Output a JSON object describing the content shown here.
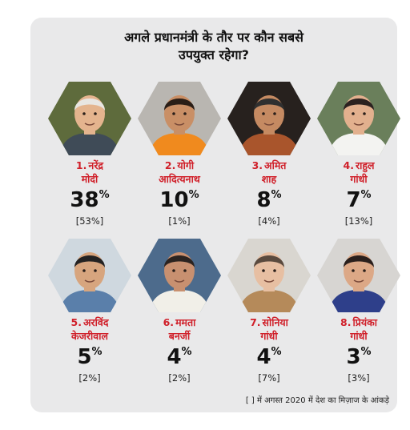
{
  "title_line1": "अगले प्रधानमंत्री के तौर पर कौन सबसे",
  "title_line2": "उपयुक्त रहेगा?",
  "footnote": "[ ] में अगस्त 2020 में देश का मिज़ाज के आंकड़े",
  "chart_data": {
    "type": "table",
    "title": "अगले प्रधानमंत्री के तौर पर कौन सबसे उपयुक्त रहेगा?",
    "percent_unit": "%",
    "candidates": [
      {
        "rank": "1.",
        "name_line1": "नरेंद्र",
        "name_line2": "मोदी",
        "value": 38,
        "value_label": "38",
        "previous": 53,
        "previous_label": "[53%]",
        "bg": "#5e6b3c",
        "skin": "#e4b48e",
        "hair": "#e8e6e2",
        "clothes": "#3f4b57"
      },
      {
        "rank": "2.",
        "name_line1": "योगी",
        "name_line2": "आदित्यनाथ",
        "value": 10,
        "value_label": "10",
        "previous": 1,
        "previous_label": "[1%]",
        "bg": "#b9b6b1",
        "skin": "#c98f66",
        "hair": "#2a1e17",
        "clothes": "#f08a1e"
      },
      {
        "rank": "3.",
        "name_line1": "अमित",
        "name_line2": "शाह",
        "value": 8,
        "value_label": "8",
        "previous": 4,
        "previous_label": "[4%]",
        "bg": "#27211e",
        "skin": "#c58a62",
        "hair": "#303030",
        "clothes": "#a9552c"
      },
      {
        "rank": "4.",
        "name_line1": "राहुल",
        "name_line2": "गांधी",
        "value": 7,
        "value_label": "7",
        "previous": 13,
        "previous_label": "[13%]",
        "bg": "#6a7f5b",
        "skin": "#e2b08e",
        "hair": "#2c2220",
        "clothes": "#f3f3f1"
      },
      {
        "rank": "5.",
        "name_line1": "अरविंद",
        "name_line2": "केजरीवाल",
        "value": 5,
        "value_label": "5",
        "previous": 2,
        "previous_label": "[2%]",
        "bg": "#cfd8df",
        "skin": "#d7a57e",
        "hair": "#242222",
        "clothes": "#5a7faa"
      },
      {
        "rank": "6.",
        "name_line1": "ममता",
        "name_line2": "बनर्जी",
        "value": 4,
        "value_label": "4",
        "previous": 2,
        "previous_label": "[2%]",
        "bg": "#4d6b8c",
        "skin": "#c89070",
        "hair": "#2b2320",
        "clothes": "#f1efe8"
      },
      {
        "rank": "7.",
        "name_line1": "सोनिया",
        "name_line2": "गांधी",
        "value": 4,
        "value_label": "4",
        "previous": 7,
        "previous_label": "[7%]",
        "bg": "#d9d6d0",
        "skin": "#e7bfa2",
        "hair": "#5a4a3e",
        "clothes": "#b58a5a"
      },
      {
        "rank": "8.",
        "name_line1": "प्रियंका",
        "name_line2": "गांधी",
        "value": 3,
        "value_label": "3",
        "previous": 3,
        "previous_label": "[3%]",
        "bg": "#d7d5d2",
        "skin": "#dca886",
        "hair": "#2a1f1c",
        "clothes": "#2e3f8a"
      }
    ]
  }
}
